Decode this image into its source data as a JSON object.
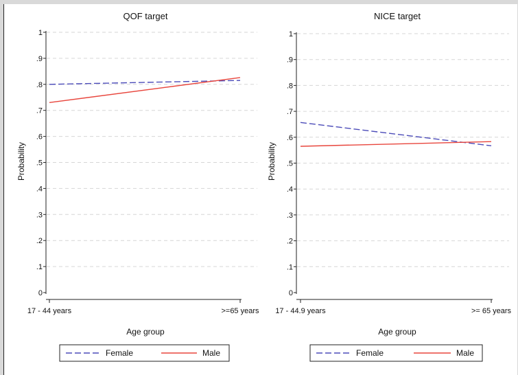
{
  "chart_data": [
    {
      "type": "line",
      "title": "QOF target",
      "xlabel": "Age group",
      "ylabel": "Probability",
      "categories": [
        "17 - 44 years",
        ">=65  years"
      ],
      "ylim": [
        0,
        1
      ],
      "yticks": [
        "0",
        ".1",
        ".2",
        ".3",
        ".4",
        ".5",
        ".6",
        ".7",
        ".8",
        ".9",
        "1"
      ],
      "grid": true,
      "legend_position": "bottom",
      "series": [
        {
          "name": "Female",
          "values": [
            0.8,
            0.815
          ],
          "color": "#4a4ab8",
          "style": "dashed"
        },
        {
          "name": "Male",
          "values": [
            0.73,
            0.826
          ],
          "color": "#e8453c",
          "style": "solid"
        }
      ]
    },
    {
      "type": "line",
      "title": "NICE target",
      "xlabel": "Age group",
      "ylabel": "Probability",
      "categories": [
        "17 - 44.9 years",
        ">= 65 years"
      ],
      "ylim": [
        0,
        1
      ],
      "yticks": [
        "0",
        ".1",
        ".2",
        ".3",
        ".4",
        ".5",
        ".6",
        ".7",
        ".8",
        ".9",
        "1"
      ],
      "grid": true,
      "legend_position": "bottom",
      "series": [
        {
          "name": "Female",
          "values": [
            0.657,
            0.567
          ],
          "color": "#4a4ab8",
          "style": "dashed"
        },
        {
          "name": "Male",
          "values": [
            0.565,
            0.583
          ],
          "color": "#e8453c",
          "style": "solid"
        }
      ]
    }
  ]
}
